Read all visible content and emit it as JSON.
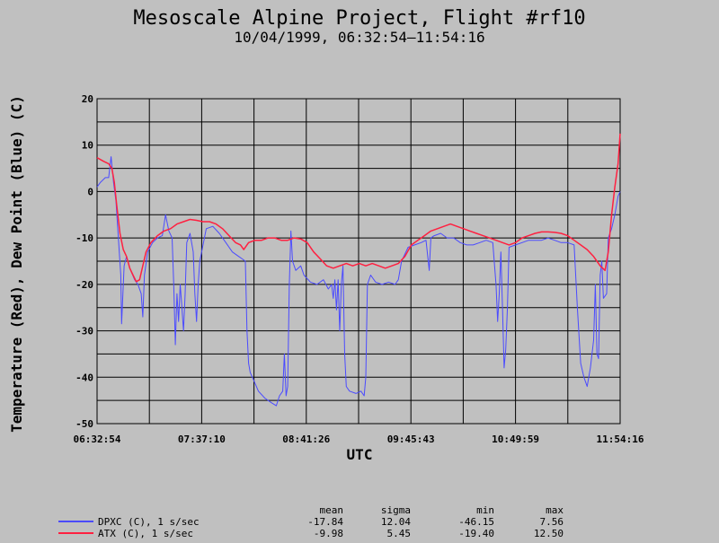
{
  "chart_data": {
    "type": "line",
    "title": "Mesoscale Alpine Project, Flight #rf10",
    "subtitle": "10/04/1999, 06:32:54–11:54:16",
    "xlabel": "UTC",
    "ylabel": "Temperature (Red), Dew Point (Blue) (C)",
    "x_start": "06:32:54",
    "x_end": "11:54:16",
    "x_ticks": [
      "06:32:54",
      "07:37:10",
      "08:41:26",
      "09:45:43",
      "10:49:59",
      "11:54:16"
    ],
    "ylim": [
      -50,
      20
    ],
    "y_ticks": [
      -50,
      -40,
      -30,
      -20,
      -10,
      0,
      10,
      20
    ],
    "grid": true,
    "stats_headers": [
      "mean",
      "sigma",
      "min",
      "max"
    ],
    "series": [
      {
        "name": "ATX (C), 1 s/sec",
        "color": "#ff2040",
        "stats": [
          "-9.98",
          "5.45",
          "-19.40",
          "12.50"
        ],
        "points": [
          [
            "06:32:54",
            7.3
          ],
          [
            "06:37:00",
            6.5
          ],
          [
            "06:40:00",
            6.0
          ],
          [
            "06:42:00",
            5.0
          ],
          [
            "06:43:30",
            2.0
          ],
          [
            "06:45:00",
            -3.0
          ],
          [
            "06:47:00",
            -9.0
          ],
          [
            "06:49:00",
            -12.5
          ],
          [
            "06:51:00",
            -14.0
          ],
          [
            "06:53:00",
            -16.5
          ],
          [
            "06:55:00",
            -18.0
          ],
          [
            "06:57:00",
            -19.4
          ],
          [
            "06:59:00",
            -19.0
          ],
          [
            "07:01:00",
            -16.0
          ],
          [
            "07:03:00",
            -13.0
          ],
          [
            "07:06:00",
            -11.0
          ],
          [
            "07:10:00",
            -9.5
          ],
          [
            "07:14:00",
            -8.5
          ],
          [
            "07:18:00",
            -8.0
          ],
          [
            "07:22:00",
            -7.0
          ],
          [
            "07:26:00",
            -6.5
          ],
          [
            "07:30:00",
            -6.0
          ],
          [
            "07:34:00",
            -6.2
          ],
          [
            "07:38:00",
            -6.5
          ],
          [
            "07:42:00",
            -6.5
          ],
          [
            "07:46:00",
            -7.0
          ],
          [
            "07:50:00",
            -8.0
          ],
          [
            "07:54:00",
            -9.5
          ],
          [
            "07:58:00",
            -11.0
          ],
          [
            "08:01:00",
            -11.5
          ],
          [
            "08:03:00",
            -12.5
          ],
          [
            "08:06:00",
            -11.0
          ],
          [
            "08:10:00",
            -10.5
          ],
          [
            "08:14:00",
            -10.5
          ],
          [
            "08:18:00",
            -10.0
          ],
          [
            "08:22:00",
            -10.0
          ],
          [
            "08:26:00",
            -10.5
          ],
          [
            "08:30:00",
            -10.5
          ],
          [
            "08:34:00",
            -10.0
          ],
          [
            "08:38:00",
            -10.2
          ],
          [
            "08:42:00",
            -11.0
          ],
          [
            "08:46:00",
            -13.0
          ],
          [
            "08:50:00",
            -14.5
          ],
          [
            "08:54:00",
            -16.0
          ],
          [
            "08:58:00",
            -16.5
          ],
          [
            "09:02:00",
            -16.0
          ],
          [
            "09:06:00",
            -15.5
          ],
          [
            "09:10:00",
            -16.0
          ],
          [
            "09:14:00",
            -15.5
          ],
          [
            "09:18:00",
            -16.0
          ],
          [
            "09:22:00",
            -15.5
          ],
          [
            "09:26:00",
            -16.0
          ],
          [
            "09:30:00",
            -16.5
          ],
          [
            "09:34:00",
            -16.0
          ],
          [
            "09:38:00",
            -15.5
          ],
          [
            "09:42:00",
            -14.0
          ],
          [
            "09:46:00",
            -11.5
          ],
          [
            "09:50:00",
            -10.5
          ],
          [
            "09:54:00",
            -9.5
          ],
          [
            "09:58:00",
            -8.5
          ],
          [
            "10:02:00",
            -8.0
          ],
          [
            "10:06:00",
            -7.5
          ],
          [
            "10:10:00",
            -7.0
          ],
          [
            "10:14:00",
            -7.5
          ],
          [
            "10:18:00",
            -8.0
          ],
          [
            "10:22:00",
            -8.5
          ],
          [
            "10:26:00",
            -9.0
          ],
          [
            "10:30:00",
            -9.5
          ],
          [
            "10:34:00",
            -10.0
          ],
          [
            "10:38:00",
            -10.5
          ],
          [
            "10:42:00",
            -11.0
          ],
          [
            "10:46:00",
            -11.5
          ],
          [
            "10:50:00",
            -11.0
          ],
          [
            "10:54:00",
            -10.0
          ],
          [
            "10:58:00",
            -9.5
          ],
          [
            "11:02:00",
            -9.0
          ],
          [
            "11:06:00",
            -8.7
          ],
          [
            "11:10:00",
            -8.7
          ],
          [
            "11:14:00",
            -8.8
          ],
          [
            "11:18:00",
            -9.0
          ],
          [
            "11:22:00",
            -9.5
          ],
          [
            "11:26:00",
            -10.5
          ],
          [
            "11:30:00",
            -11.5
          ],
          [
            "11:34:00",
            -12.5
          ],
          [
            "11:38:00",
            -14.0
          ],
          [
            "11:42:00",
            -16.0
          ],
          [
            "11:45:00",
            -17.0
          ],
          [
            "11:47:00",
            -13.0
          ],
          [
            "11:49:00",
            -5.0
          ],
          [
            "11:51:00",
            1.0
          ],
          [
            "11:53:00",
            6.0
          ],
          [
            "11:54:16",
            12.5
          ]
        ]
      },
      {
        "name": "DPXC (C), 1 s/sec",
        "color": "#4b4bff",
        "stats": [
          "-17.84",
          "12.04",
          "-46.15",
          "7.56"
        ],
        "points": [
          [
            "06:32:54",
            1.0
          ],
          [
            "06:35:00",
            2.0
          ],
          [
            "06:38:00",
            3.0
          ],
          [
            "06:40:00",
            3.0
          ],
          [
            "06:41:30",
            7.5
          ],
          [
            "06:43:00",
            2.0
          ],
          [
            "06:44:30",
            -2.0
          ],
          [
            "06:46:00",
            -10.0
          ],
          [
            "06:47:30",
            -18.0
          ],
          [
            "06:48:00",
            -28.5
          ],
          [
            "06:49:30",
            -16.0
          ],
          [
            "06:51:00",
            -14.0
          ],
          [
            "06:53:00",
            -16.5
          ],
          [
            "06:56:00",
            -19.0
          ],
          [
            "06:58:00",
            -20.0
          ],
          [
            "07:00:00",
            -22.0
          ],
          [
            "07:01:00",
            -27.0
          ],
          [
            "07:02:00",
            -18.0
          ],
          [
            "07:04:00",
            -13.0
          ],
          [
            "07:07:00",
            -11.0
          ],
          [
            "07:10:00",
            -10.0
          ],
          [
            "07:13:00",
            -9.5
          ],
          [
            "07:15:00",
            -5.0
          ],
          [
            "07:17:00",
            -8.5
          ],
          [
            "07:19:00",
            -10.0
          ],
          [
            "07:20:00",
            -20.0
          ],
          [
            "07:21:00",
            -33.0
          ],
          [
            "07:22:00",
            -22.0
          ],
          [
            "07:23:00",
            -28.0
          ],
          [
            "07:24:00",
            -20.0
          ],
          [
            "07:25:00",
            -25.0
          ],
          [
            "07:26:00",
            -30.0
          ],
          [
            "07:27:00",
            -22.0
          ],
          [
            "07:28:00",
            -11.0
          ],
          [
            "07:30:00",
            -9.0
          ],
          [
            "07:32:00",
            -13.0
          ],
          [
            "07:33:00",
            -22.0
          ],
          [
            "07:34:00",
            -28.0
          ],
          [
            "07:35:00",
            -20.0
          ],
          [
            "07:36:00",
            -15.0
          ],
          [
            "07:40:00",
            -8.0
          ],
          [
            "07:44:00",
            -7.5
          ],
          [
            "07:48:00",
            -9.0
          ],
          [
            "07:52:00",
            -11.0
          ],
          [
            "07:56:00",
            -13.0
          ],
          [
            "08:00:00",
            -14.0
          ],
          [
            "08:02:00",
            -14.5
          ],
          [
            "08:04:00",
            -15.0
          ],
          [
            "08:05:00",
            -30.0
          ],
          [
            "08:06:00",
            -37.0
          ],
          [
            "08:07:00",
            -39.0
          ],
          [
            "08:09:00",
            -40.5
          ],
          [
            "08:12:00",
            -43.0
          ],
          [
            "08:16:00",
            -44.5
          ],
          [
            "08:20:00",
            -45.5
          ],
          [
            "08:23:00",
            -46.15
          ],
          [
            "08:25:00",
            -44.0
          ],
          [
            "08:27:00",
            -43.0
          ],
          [
            "08:28:00",
            -35.0
          ],
          [
            "08:29:00",
            -44.0
          ],
          [
            "08:30:00",
            -42.0
          ],
          [
            "08:31:00",
            -20.0
          ],
          [
            "08:32:00",
            -8.5
          ],
          [
            "08:33:00",
            -15.0
          ],
          [
            "08:35:00",
            -17.0
          ],
          [
            "08:38:00",
            -16.0
          ],
          [
            "08:40:00",
            -18.0
          ],
          [
            "08:44:00",
            -19.5
          ],
          [
            "08:48:00",
            -20.0
          ],
          [
            "08:52:00",
            -19.0
          ],
          [
            "08:55:00",
            -21.0
          ],
          [
            "08:57:00",
            -20.0
          ],
          [
            "08:58:00",
            -23.0
          ],
          [
            "08:59:00",
            -19.0
          ],
          [
            "09:00:00",
            -25.5
          ],
          [
            "09:01:00",
            -19.0
          ],
          [
            "09:02:00",
            -30.0
          ],
          [
            "09:03:00",
            -20.0
          ],
          [
            "09:04:00",
            -16.0
          ],
          [
            "09:05:00",
            -35.0
          ],
          [
            "09:06:00",
            -42.0
          ],
          [
            "09:08:00",
            -43.0
          ],
          [
            "09:12:00",
            -43.5
          ],
          [
            "09:15:00",
            -43.0
          ],
          [
            "09:17:00",
            -44.0
          ],
          [
            "09:18:00",
            -40.0
          ],
          [
            "09:19:00",
            -20.0
          ],
          [
            "09:21:00",
            -18.0
          ],
          [
            "09:24:00",
            -19.5
          ],
          [
            "09:28:00",
            -20.0
          ],
          [
            "09:32:00",
            -19.5
          ],
          [
            "09:36:00",
            -20.0
          ],
          [
            "09:38:00",
            -19.0
          ],
          [
            "09:40:00",
            -15.0
          ],
          [
            "09:44:00",
            -12.0
          ],
          [
            "09:48:00",
            -11.5
          ],
          [
            "09:52:00",
            -11.0
          ],
          [
            "09:55:00",
            -10.5
          ],
          [
            "09:57:00",
            -17.0
          ],
          [
            "09:58:00",
            -10.0
          ],
          [
            "10:00:00",
            -9.5
          ],
          [
            "10:04:00",
            -9.0
          ],
          [
            "10:08:00",
            -10.0
          ],
          [
            "10:12:00",
            -10.0
          ],
          [
            "10:16:00",
            -11.0
          ],
          [
            "10:20:00",
            -11.5
          ],
          [
            "10:24:00",
            -11.5
          ],
          [
            "10:28:00",
            -11.0
          ],
          [
            "10:32:00",
            -10.5
          ],
          [
            "10:36:00",
            -11.0
          ],
          [
            "10:38:00",
            -20.0
          ],
          [
            "10:39:00",
            -28.0
          ],
          [
            "10:40:00",
            -22.0
          ],
          [
            "10:41:00",
            -13.0
          ],
          [
            "10:42:00",
            -25.0
          ],
          [
            "10:43:00",
            -38.0
          ],
          [
            "10:44:00",
            -34.0
          ],
          [
            "10:45:00",
            -25.0
          ],
          [
            "10:46:00",
            -12.0
          ],
          [
            "10:50:00",
            -11.5
          ],
          [
            "10:54:00",
            -11.0
          ],
          [
            "10:58:00",
            -10.5
          ],
          [
            "11:02:00",
            -10.5
          ],
          [
            "11:06:00",
            -10.5
          ],
          [
            "11:10:00",
            -10.0
          ],
          [
            "11:14:00",
            -10.5
          ],
          [
            "11:18:00",
            -11.0
          ],
          [
            "11:22:00",
            -11.0
          ],
          [
            "11:26:00",
            -11.5
          ],
          [
            "11:28:00",
            -25.0
          ],
          [
            "11:30:00",
            -37.0
          ],
          [
            "11:32:00",
            -40.0
          ],
          [
            "11:34:00",
            -42.0
          ],
          [
            "11:36:00",
            -38.0
          ],
          [
            "11:38:00",
            -32.0
          ],
          [
            "11:39:00",
            -20.0
          ],
          [
            "11:40:00",
            -35.0
          ],
          [
            "11:41:00",
            -36.0
          ],
          [
            "11:42:00",
            -18.0
          ],
          [
            "11:43:00",
            -15.0
          ],
          [
            "11:44:00",
            -23.0
          ],
          [
            "11:46:00",
            -22.0
          ],
          [
            "11:47:00",
            -10.0
          ],
          [
            "11:49:00",
            -8.0
          ],
          [
            "11:51:00",
            -5.0
          ],
          [
            "11:53:00",
            -1.0
          ],
          [
            "11:54:16",
            0.0
          ]
        ]
      }
    ]
  }
}
